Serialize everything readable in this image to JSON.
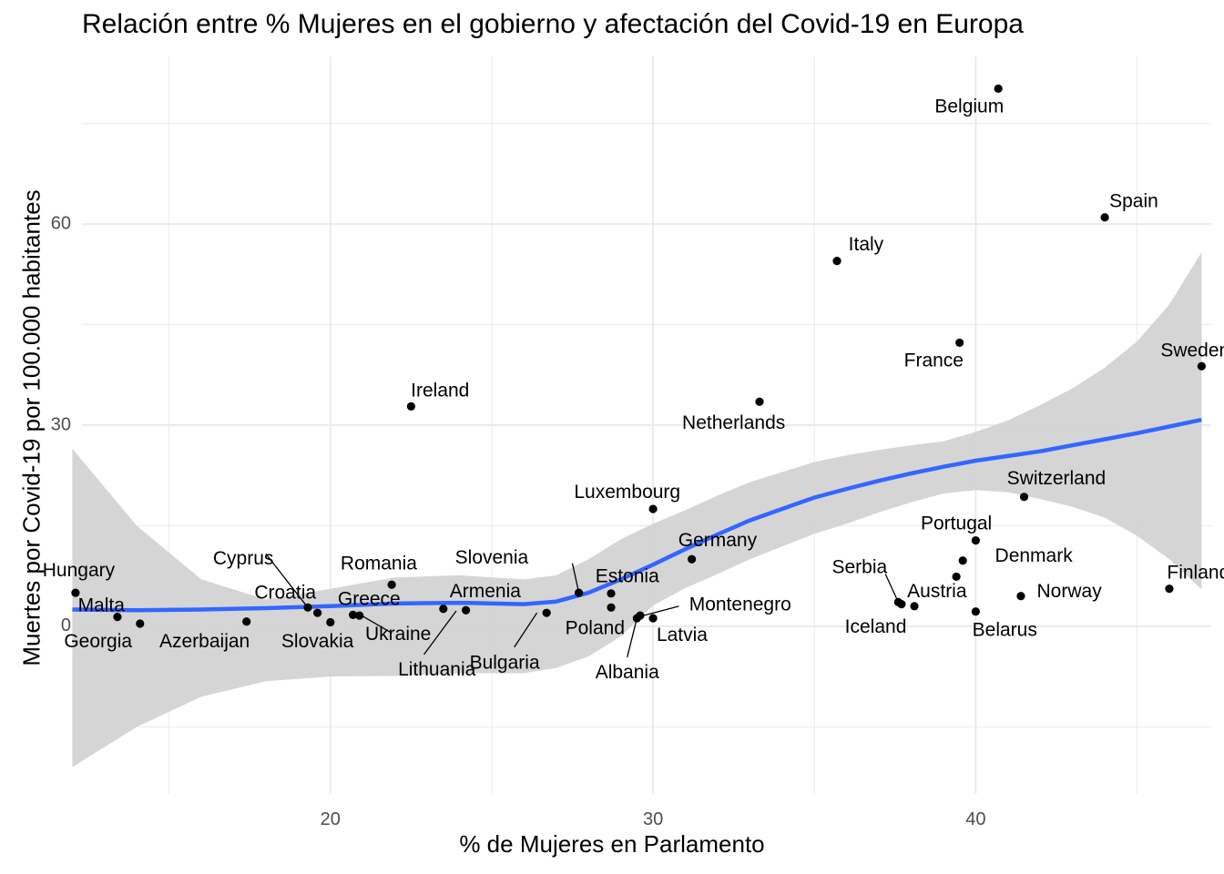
{
  "chart_data": {
    "type": "scatter",
    "title": "Relación entre % Mujeres en el gobierno y afectación del Covid-19 en Europa",
    "xlabel": "% de Mujeres en Parlamento",
    "ylabel": "Muertes por Covid-19 por 100.000 habitantes",
    "xlim": [
      12.3,
      47.3
    ],
    "ylim": [
      -25,
      85
    ],
    "x_ticks": [
      20,
      30,
      40
    ],
    "y_ticks": [
      0,
      30,
      60
    ],
    "grid": true,
    "smooth_color": "#3366FF",
    "ribbon_color": "#D3D3D3",
    "points": [
      {
        "label": "Hungary",
        "x": 12.1,
        "y": 5.0
      },
      {
        "label": "Malta",
        "x": 13.4,
        "y": 1.4
      },
      {
        "label": "Georgia",
        "x": 14.1,
        "y": 0.4
      },
      {
        "label": "Azerbaijan",
        "x": 17.4,
        "y": 0.7
      },
      {
        "label": "Cyprus",
        "x": 19.3,
        "y": 2.8
      },
      {
        "label": "Croatia",
        "x": 19.6,
        "y": 2.0
      },
      {
        "label": "Slovakia",
        "x": 20.0,
        "y": 0.6
      },
      {
        "label": "Greece",
        "x": 20.7,
        "y": 1.7
      },
      {
        "label": "Ukraine",
        "x": 20.9,
        "y": 1.6
      },
      {
        "label": "Romania",
        "x": 21.9,
        "y": 6.2
      },
      {
        "label": "Ireland",
        "x": 22.5,
        "y": 32.8
      },
      {
        "label": "Lithuania",
        "x": 23.5,
        "y": 2.6
      },
      {
        "label": "Armenia",
        "x": 24.2,
        "y": 2.4
      },
      {
        "label": "Bulgaria",
        "x": 26.7,
        "y": 2.0
      },
      {
        "label": "Slovenia",
        "x": 27.7,
        "y": 5.0
      },
      {
        "label": "Estonia",
        "x": 28.7,
        "y": 4.9
      },
      {
        "label": "Poland",
        "x": 28.7,
        "y": 2.8
      },
      {
        "label": "Albania",
        "x": 29.5,
        "y": 1.2
      },
      {
        "label": "Montenegro",
        "x": 29.6,
        "y": 1.6
      },
      {
        "label": "Latvia",
        "x": 30.0,
        "y": 1.2
      },
      {
        "label": "Luxembourg",
        "x": 30.0,
        "y": 17.5
      },
      {
        "label": "Germany",
        "x": 31.2,
        "y": 10.0
      },
      {
        "label": "Netherlands",
        "x": 33.3,
        "y": 33.5
      },
      {
        "label": "Italy",
        "x": 35.7,
        "y": 54.5
      },
      {
        "label": "Serbia",
        "x": 37.6,
        "y": 3.6
      },
      {
        "label": "Iceland",
        "x": 37.7,
        "y": 3.3
      },
      {
        "label": "Austria",
        "x": 38.1,
        "y": 3.0
      },
      {
        "label": "Portugal",
        "x": 39.4,
        "y": 7.4
      },
      {
        "label": "France",
        "x": 39.5,
        "y": 42.3
      },
      {
        "label": "Denmark",
        "x": 39.6,
        "y": 9.8
      },
      {
        "label": "Belarus",
        "x": 40.0,
        "y": 2.2
      },
      {
        "label": "Portugal2",
        "x": 40.0,
        "y": 12.8
      },
      {
        "label": "Belgium",
        "x": 40.7,
        "y": 80.2
      },
      {
        "label": "Norway",
        "x": 41.4,
        "y": 4.5
      },
      {
        "label": "Switzerland",
        "x": 41.5,
        "y": 19.3
      },
      {
        "label": "Spain",
        "x": 44.0,
        "y": 61.0
      },
      {
        "label": "Finland",
        "x": 46.0,
        "y": 5.6
      },
      {
        "label": "Sweden",
        "x": 47.0,
        "y": 38.8
      }
    ],
    "labels": [
      {
        "text": "Hungary",
        "x": 12.2,
        "y": 8.2
      },
      {
        "text": "Malta",
        "x": 12.9,
        "y": 3.0
      },
      {
        "text": "Georgia",
        "x": 12.8,
        "y": -2.4
      },
      {
        "text": "Azerbaijan",
        "x": 16.1,
        "y": -2.4
      },
      {
        "text": "Cyprus",
        "x": 17.3,
        "y": 10.0
      },
      {
        "text": "Croatia",
        "x": 18.6,
        "y": 4.9
      },
      {
        "text": "Slovakia",
        "x": 19.6,
        "y": -2.4
      },
      {
        "text": "Greece",
        "x": 21.2,
        "y": 3.9
      },
      {
        "text": "Ukraine",
        "x": 22.1,
        "y": -1.3
      },
      {
        "text": "Romania",
        "x": 21.5,
        "y": 9.2
      },
      {
        "text": "Ireland",
        "x": 23.4,
        "y": 35.0
      },
      {
        "text": "Lithuania",
        "x": 23.3,
        "y": -6.6
      },
      {
        "text": "Armenia",
        "x": 24.8,
        "y": 5.1
      },
      {
        "text": "Bulgaria",
        "x": 25.4,
        "y": -5.6
      },
      {
        "text": "Slovenia",
        "x": 25.0,
        "y": 10.1
      },
      {
        "text": "Estonia",
        "x": 29.2,
        "y": 7.3
      },
      {
        "text": "Poland",
        "x": 28.2,
        "y": -0.4
      },
      {
        "text": "Albania",
        "x": 29.2,
        "y": -7.0
      },
      {
        "text": "Montenegro",
        "x": 32.7,
        "y": 3.1
      },
      {
        "text": "Latvia",
        "x": 30.9,
        "y": -1.4
      },
      {
        "text": "Luxembourg",
        "x": 29.2,
        "y": 19.9
      },
      {
        "text": "Germany",
        "x": 32.0,
        "y": 12.7
      },
      {
        "text": "Netherlands",
        "x": 32.5,
        "y": 30.2
      },
      {
        "text": "Italy",
        "x": 36.6,
        "y": 56.8
      },
      {
        "text": "Serbia",
        "x": 36.4,
        "y": 8.7
      },
      {
        "text": "Iceland",
        "x": 36.9,
        "y": -0.2
      },
      {
        "text": "Austria",
        "x": 38.8,
        "y": 5.1
      },
      {
        "text": "Portugal",
        "x": 39.4,
        "y": 15.2
      },
      {
        "text": "France",
        "x": 38.7,
        "y": 39.5
      },
      {
        "text": "Denmark",
        "x": 41.8,
        "y": 10.4
      },
      {
        "text": "Belarus",
        "x": 40.9,
        "y": -0.7
      },
      {
        "text": "Belgium",
        "x": 39.8,
        "y": 77.4
      },
      {
        "text": "Norway",
        "x": 42.9,
        "y": 5.1
      },
      {
        "text": "Switzerland",
        "x": 42.5,
        "y": 21.9
      },
      {
        "text": "Spain",
        "x": 44.9,
        "y": 63.3
      },
      {
        "text": "Finland",
        "x": 46.9,
        "y": 7.9
      },
      {
        "text": "Sweden",
        "x": 46.8,
        "y": 41.0
      }
    ],
    "segments": [
      {
        "name": "Cyprus",
        "x1": 18.0,
        "y1": 10.8,
        "x2": 19.3,
        "y2": 2.8
      },
      {
        "name": "Ukraine",
        "x1": 21.0,
        "y1": 1.5,
        "x2": 21.9,
        "y2": -1.0
      },
      {
        "name": "Lithuania",
        "x1": 22.9,
        "y1": -4.2,
        "x2": 23.9,
        "y2": 2.3
      },
      {
        "name": "Bulgaria",
        "x1": 25.7,
        "y1": -3.1,
        "x2": 26.4,
        "y2": 2.0
      },
      {
        "name": "Slovenia",
        "x1": 27.5,
        "y1": 9.4,
        "x2": 27.7,
        "y2": 5.0
      },
      {
        "name": "Albania",
        "x1": 29.2,
        "y1": -4.6,
        "x2": 29.5,
        "y2": 1.2
      },
      {
        "name": "Montenegro",
        "x1": 30.8,
        "y1": 3.0,
        "x2": 29.7,
        "y2": 1.6
      },
      {
        "name": "Serbia",
        "x1": 37.2,
        "y1": 7.8,
        "x2": 37.6,
        "y2": 3.6
      }
    ],
    "smooth": {
      "x": [
        12.0,
        14.0,
        16.0,
        18.0,
        20.0,
        22.0,
        24.0,
        26.0,
        27.0,
        28.0,
        29.0,
        30.0,
        31.0,
        32.0,
        33.0,
        34.0,
        35.0,
        36.0,
        37.0,
        38.0,
        39.0,
        40.0,
        41.0,
        42.0,
        43.0,
        44.0,
        45.0,
        46.0,
        47.0
      ],
      "y": [
        2.5,
        2.4,
        2.5,
        2.7,
        3.0,
        3.4,
        3.5,
        3.3,
        3.7,
        5.0,
        7.0,
        9.2,
        11.5,
        13.7,
        15.8,
        17.5,
        19.2,
        20.5,
        21.7,
        22.8,
        23.8,
        24.7,
        25.4,
        26.1,
        27.0,
        27.9,
        28.8,
        29.8,
        30.8
      ]
    },
    "ribbon_upper": [
      26.5,
      15.0,
      7.0,
      4.0,
      5.6,
      7.3,
      7.6,
      7.0,
      7.6,
      10.0,
      13.0,
      15.3,
      17.3,
      19.5,
      21.5,
      23.0,
      24.5,
      25.5,
      26.3,
      27.0,
      27.6,
      29.0,
      30.7,
      33.0,
      35.5,
      38.6,
      42.5,
      48.0,
      55.8
    ],
    "ribbon_lower": [
      -21.0,
      -15.0,
      -10.5,
      -8.2,
      -7.5,
      -7.4,
      -7.0,
      -7.0,
      -6.2,
      -4.5,
      -1.5,
      3.1,
      5.7,
      7.8,
      10.0,
      11.9,
      13.8,
      15.3,
      17.0,
      18.5,
      19.8,
      20.3,
      20.0,
      19.0,
      17.8,
      16.2,
      13.5,
      10.0,
      5.5
    ]
  }
}
